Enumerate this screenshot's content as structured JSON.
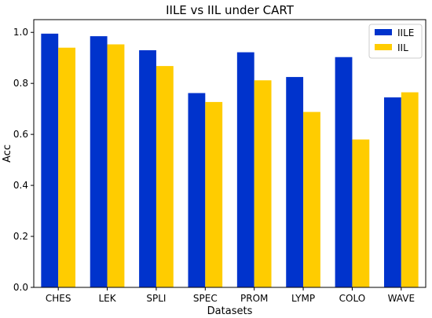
{
  "chart_data": {
    "type": "bar",
    "title": "IILE vs IIL under CART",
    "xlabel": "Datasets",
    "ylabel": "Acc",
    "categories": [
      "CHES",
      "LEK",
      "SPLI",
      "SPEC",
      "PROM",
      "LYMP",
      "COLO",
      "WAVE"
    ],
    "series": [
      {
        "name": "IILE",
        "color": "#0033cc",
        "values": [
          0.995,
          0.985,
          0.93,
          0.762,
          0.922,
          0.825,
          0.903,
          0.745
        ]
      },
      {
        "name": "IIL",
        "color": "#ffcc00",
        "values": [
          0.94,
          0.953,
          0.868,
          0.727,
          0.812,
          0.688,
          0.58,
          0.765
        ]
      }
    ],
    "ylim": [
      0,
      1.05
    ],
    "yticks": [
      0.0,
      0.2,
      0.4,
      0.6,
      0.8,
      1.0
    ],
    "ytick_labels": [
      "0.0",
      "0.2",
      "0.4",
      "0.6",
      "0.8",
      "1.0"
    ],
    "grid": false,
    "legend_position": "top-right"
  }
}
